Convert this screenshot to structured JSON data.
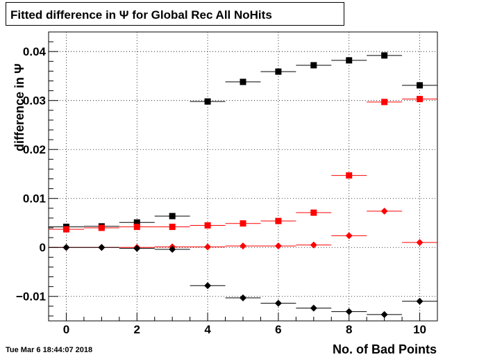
{
  "chart_data": {
    "type": "scatter",
    "title": "Fitted difference in  Ψ  for Global Rec All NoHits",
    "xlabel": "No. of Bad Points",
    "ylabel": "difference in Ψ",
    "xlim": [
      -0.5,
      10.5
    ],
    "ylim": [
      -0.015,
      0.044
    ],
    "x_ticks": [
      0,
      2,
      4,
      6,
      8,
      10
    ],
    "x_tick_labels": [
      "0",
      "2",
      "4",
      "6",
      "8",
      "10"
    ],
    "y_ticks": [
      -0.01,
      0,
      0.01,
      0.02,
      0.03,
      0.04
    ],
    "y_tick_labels": [
      "−0.01",
      "0",
      "0.01",
      "0.02",
      "0.03",
      "0.04"
    ],
    "grid": true,
    "x": [
      0,
      1,
      2,
      3,
      4,
      5,
      6,
      7,
      8,
      9,
      10
    ],
    "series": [
      {
        "color": "#000000",
        "marker": "square",
        "values": [
          0.0042,
          0.0043,
          0.0051,
          0.0064,
          0.0298,
          0.0338,
          0.0359,
          0.0372,
          0.0382,
          0.0392,
          0.0331
        ]
      },
      {
        "color": "#ff0000",
        "marker": "square",
        "values": [
          0.0037,
          0.004,
          0.0042,
          0.0042,
          0.0045,
          0.0049,
          0.0054,
          0.0071,
          0.0147,
          0.0297,
          0.0303
        ]
      },
      {
        "color": "#ff0000",
        "marker": "diamond",
        "values": [
          0.0,
          0.0,
          0.0,
          0.0001,
          0.0001,
          0.0003,
          0.0003,
          0.0005,
          0.0024,
          0.0074,
          0.001
        ]
      },
      {
        "color": "#000000",
        "marker": "diamond",
        "values": [
          0.0,
          0.0,
          -0.0002,
          -0.0004,
          -0.0078,
          -0.0103,
          -0.0114,
          -0.0124,
          -0.0131,
          -0.0137,
          -0.011
        ]
      }
    ]
  },
  "footer": {
    "timestamp": "Tue Mar  6 18:44:07 2018"
  }
}
